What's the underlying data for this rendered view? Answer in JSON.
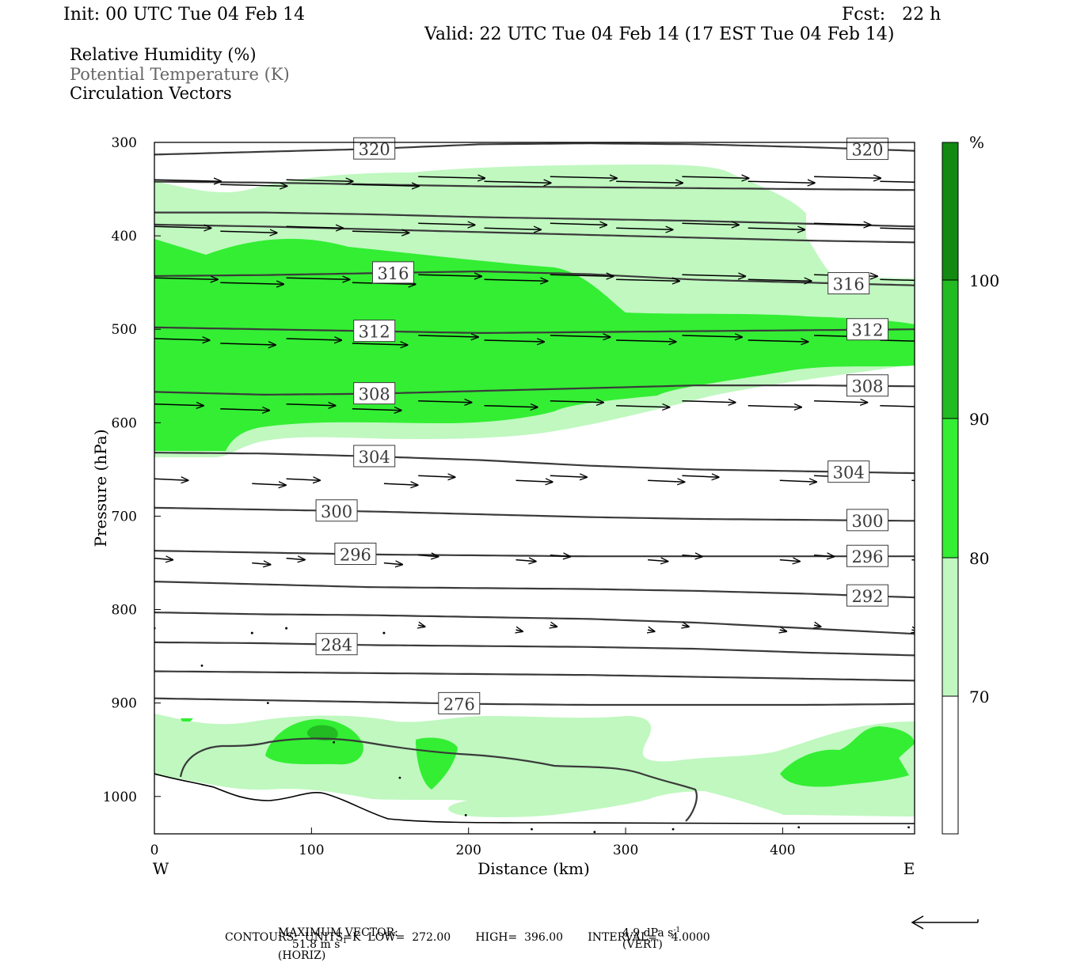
{
  "header": {
    "init": "Init: 00 UTC Tue 04 Feb 14",
    "fcst": "Fcst:   22 h",
    "valid": "Valid: 22 UTC Tue 04 Feb 14 (17 EST Tue 04 Feb 14)"
  },
  "legend_text": {
    "rh": "Relative Humidity (%)",
    "theta": "Potential Temperature (K)",
    "vectors": "Circulation Vectors"
  },
  "colors": {
    "rh_70_80": "#c0f8c0",
    "rh_80_90": "#33ee33",
    "rh_90_100": "#22bb22",
    "rh_100": "#128a12",
    "contour": "#3a3a3a",
    "frame": "#000000"
  },
  "chart_data": {
    "type": "cross-section",
    "xlabel": "Distance (km)",
    "ylabel": "Pressure (hPa)",
    "x_ticks": [
      "0",
      "100",
      "200",
      "300",
      "400"
    ],
    "y_ticks": [
      "300",
      "400",
      "500",
      "600",
      "700",
      "800",
      "900",
      "1000"
    ],
    "xlim": [
      0,
      484
    ],
    "ylim": [
      300,
      1040
    ],
    "left_end_label": "W",
    "right_end_label": "E",
    "theta_contours": [
      {
        "label": "320",
        "p": [
          313,
          310,
          307,
          302,
          301,
          302,
          305,
          309
        ]
      },
      {
        "label": "",
        "p": [
          342,
          343,
          345,
          347,
          348,
          349,
          350,
          351
        ]
      },
      {
        "label": "",
        "p": [
          375,
          375,
          377,
          380,
          382,
          384,
          387,
          390
        ]
      },
      {
        "label": "",
        "p": [
          388,
          390,
          393,
          396,
          399,
          402,
          405,
          407
        ]
      },
      {
        "label": "316",
        "p": [
          443,
          442,
          440,
          438,
          441,
          447,
          450,
          453
        ]
      },
      {
        "label": "312",
        "p": [
          498,
          500,
          502,
          504,
          503,
          502,
          501,
          500
        ]
      },
      {
        "label": "308",
        "p": [
          567,
          570,
          569,
          566,
          563,
          560,
          560,
          561
        ]
      },
      {
        "label": "304",
        "p": [
          632,
          633,
          636,
          640,
          646,
          650,
          652,
          654
        ]
      },
      {
        "label": "300",
        "p": [
          691,
          693,
          695,
          698,
          701,
          703,
          704,
          705
        ]
      },
      {
        "label": "296",
        "p": [
          737,
          739,
          741,
          742,
          743,
          743,
          743,
          743
        ]
      },
      {
        "label": "292",
        "p": [
          770,
          773,
          776,
          777,
          778,
          780,
          783,
          787
        ]
      },
      {
        "label": "",
        "p": [
          803,
          805,
          806,
          808,
          810,
          814,
          820,
          826
        ]
      },
      {
        "label": "284",
        "p": [
          835,
          836,
          838,
          839,
          840,
          842,
          846,
          849
        ]
      },
      {
        "label": "",
        "p": [
          866,
          867,
          868,
          869,
          870,
          872,
          874,
          876
        ]
      },
      {
        "label": "276",
        "p": [
          895,
          897,
          899,
          901,
          902,
          902,
          902,
          901
        ]
      }
    ],
    "rh_levels": [
      "70",
      "80",
      "90",
      "100"
    ],
    "colorbar_unit": "%",
    "vectors": [
      {
        "p": 340,
        "w": 1.0
      },
      {
        "p": 390,
        "w": 0.85
      },
      {
        "p": 445,
        "w": 0.95
      },
      {
        "p": 510,
        "w": 0.9
      },
      {
        "p": 580,
        "w": 0.8
      },
      {
        "p": 660,
        "w": 0.55
      },
      {
        "p": 745,
        "w": 0.3
      },
      {
        "p": 820,
        "w": 0.1
      }
    ]
  },
  "footer": {
    "max_vector_label": "MAXIMUM VECTOR:",
    "horiz": "51.8 m s",
    "horiz_sup": "-1",
    "horiz_tag": "(HORIZ)",
    "vert": "4.9 dPa s",
    "vert_sup": "-1",
    "vert_tag": "(VERT)",
    "contours": "CONTOURS:  UNITS=K  LOW=  272.00       HIGH=  396.00       INTERVAL=    4.0000"
  }
}
